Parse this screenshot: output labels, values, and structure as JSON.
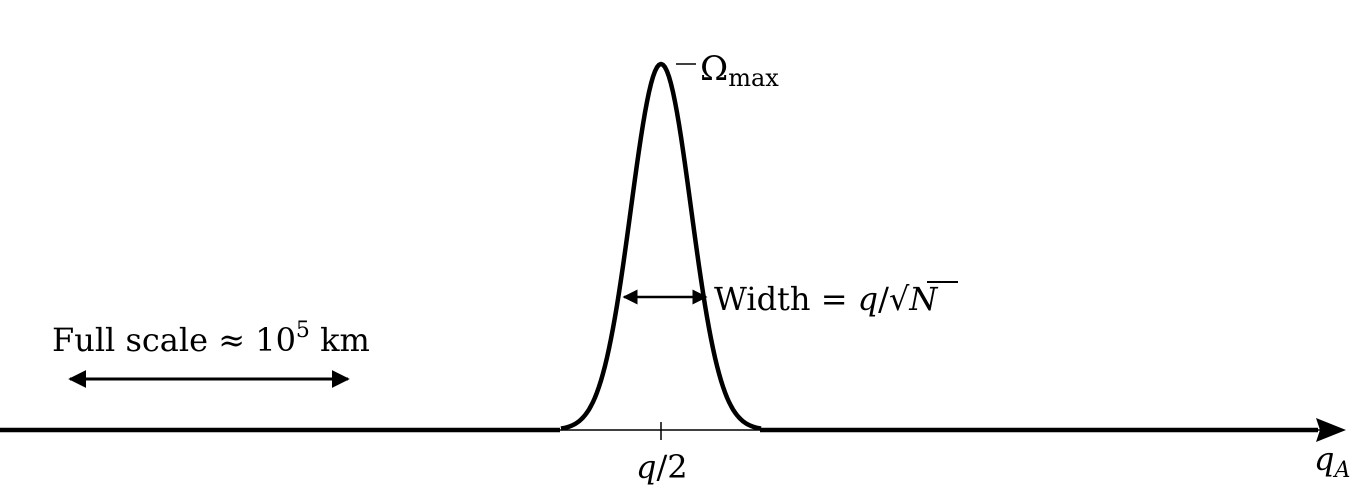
{
  "figure": {
    "peak_label": {
      "symbol": "Ω",
      "subscript": "max"
    },
    "width_label": {
      "prefix": "Width = ",
      "q": "q",
      "slash": "/",
      "N": "N"
    },
    "scale_label": {
      "text": "Full scale ≈ 10",
      "exponent": "5",
      "unit": " km"
    },
    "center_tick_label": {
      "q": "q",
      "rest": "/2"
    },
    "axis_label": {
      "q": "q",
      "subscript": "A"
    }
  },
  "colors": {
    "ink": "#000000",
    "background": "#ffffff"
  }
}
